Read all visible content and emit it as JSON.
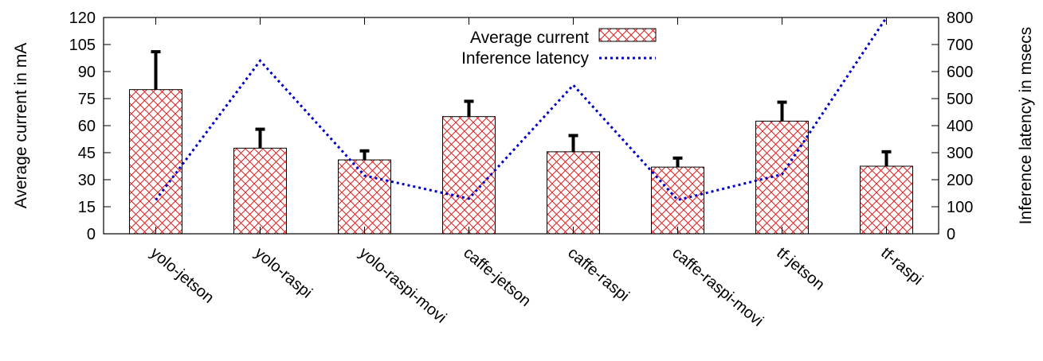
{
  "chart_data": {
    "type": "bar",
    "title": "",
    "categories": [
      "yolo-jetson",
      "yolo-raspi",
      "yolo-raspi-movi",
      "caffe-jetson",
      "caffe-raspi",
      "caffe-raspi-movi",
      "tf-jetson",
      "tf-raspi"
    ],
    "series": [
      {
        "name": "Average current",
        "axis": "left",
        "type": "bar",
        "values": [
          80,
          47.5,
          41,
          65,
          45.5,
          37,
          62.5,
          37.5
        ],
        "error_upper": [
          101,
          58,
          46,
          73.5,
          54.5,
          42,
          73,
          45.5
        ],
        "color": "#cc0000",
        "pattern": "crosshatch"
      },
      {
        "name": "Inference latency",
        "axis": "right",
        "type": "line",
        "style": "dotted",
        "values": [
          125,
          640,
          215,
          130,
          550,
          125,
          220,
          800
        ],
        "color": "#0000cc"
      }
    ],
    "ylabel": "Average current in mA",
    "y2label": "Inference latency in msecs",
    "ylim": [
      0,
      120
    ],
    "y2lim": [
      0,
      800
    ],
    "yticks": [
      "0",
      "15",
      "30",
      "45",
      "60",
      "75",
      "90",
      "105",
      "120"
    ],
    "y2ticks": [
      "0",
      "100",
      "200",
      "300",
      "400",
      "500",
      "600",
      "700",
      "800"
    ],
    "legend_position": "top-center",
    "grid": false
  }
}
